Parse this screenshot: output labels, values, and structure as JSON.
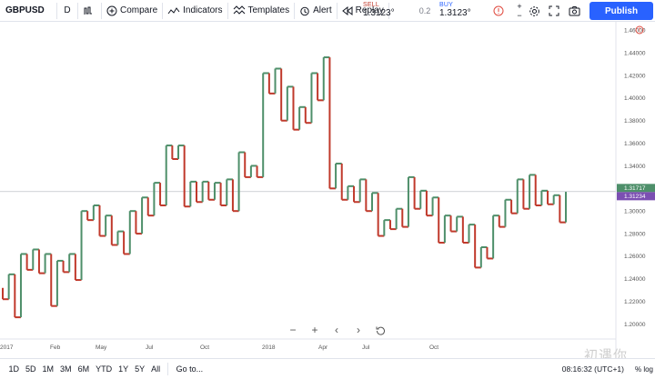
{
  "toolbar": {
    "symbol": "GBPUSD",
    "interval": "D",
    "compare_label": "Compare",
    "indicators_label": "Indicators",
    "templates_label": "Templates",
    "alert_label": "Alert",
    "replay_label": "Replay",
    "sell_label": "SELL",
    "sell_price": "1.3123°",
    "spread": "0.2",
    "buy_label": "BUY",
    "buy_price": "1.3123°",
    "publish_label": "Publish"
  },
  "bottom_bar": {
    "ranges": [
      "1D",
      "5D",
      "1M",
      "3M",
      "6M",
      "YTD",
      "1Y",
      "5Y",
      "All"
    ],
    "goto_label": "Go to...",
    "clock": "08:16:32 (UTC+1)",
    "flags": "% log"
  },
  "watermark": "初遇你",
  "colors": {
    "up": "#4e8f6a",
    "down": "#c0392b",
    "accent": "#2962ff",
    "last_price_badge": "#7b4fb2"
  },
  "chart_data": {
    "type": "kagi",
    "symbol": "GBPUSD",
    "interval": "D",
    "ylim": [
      1.19,
      1.465
    ],
    "yticks": [
      "1.46000",
      "1.44000",
      "1.42000",
      "1.40000",
      "1.38000",
      "1.36000",
      "1.34000",
      "1.32000",
      "1.30000",
      "1.28000",
      "1.26000",
      "1.24000",
      "1.22000",
      "1.20000"
    ],
    "price_labels": [
      "1.31717",
      "1.31234"
    ],
    "time_labels": [
      "2017",
      "Feb",
      "May",
      "Jul",
      "Oct",
      "2018",
      "Apr",
      "Jul",
      "Oct"
    ],
    "segments": [
      {
        "x": 0,
        "y0": 1.232,
        "y1": 1.222,
        "dir": "down"
      },
      {
        "x": 1,
        "y0": 1.222,
        "y1": 1.244,
        "dir": "up"
      },
      {
        "x": 2,
        "y0": 1.244,
        "y1": 1.206,
        "dir": "down"
      },
      {
        "x": 3,
        "y0": 1.206,
        "y1": 1.262,
        "dir": "up"
      },
      {
        "x": 4,
        "y0": 1.262,
        "y1": 1.248,
        "dir": "down"
      },
      {
        "x": 5,
        "y0": 1.248,
        "y1": 1.266,
        "dir": "up"
      },
      {
        "x": 6,
        "y0": 1.266,
        "y1": 1.245,
        "dir": "down"
      },
      {
        "x": 7,
        "y0": 1.245,
        "y1": 1.262,
        "dir": "up"
      },
      {
        "x": 8,
        "y0": 1.262,
        "y1": 1.216,
        "dir": "down"
      },
      {
        "x": 9,
        "y0": 1.216,
        "y1": 1.256,
        "dir": "up"
      },
      {
        "x": 10,
        "y0": 1.256,
        "y1": 1.246,
        "dir": "down"
      },
      {
        "x": 11,
        "y0": 1.246,
        "y1": 1.262,
        "dir": "up"
      },
      {
        "x": 12,
        "y0": 1.262,
        "y1": 1.239,
        "dir": "down"
      },
      {
        "x": 13,
        "y0": 1.239,
        "y1": 1.3,
        "dir": "up"
      },
      {
        "x": 14,
        "y0": 1.3,
        "y1": 1.292,
        "dir": "down"
      },
      {
        "x": 15,
        "y0": 1.292,
        "y1": 1.305,
        "dir": "up"
      },
      {
        "x": 16,
        "y0": 1.305,
        "y1": 1.278,
        "dir": "down"
      },
      {
        "x": 17,
        "y0": 1.278,
        "y1": 1.296,
        "dir": "up"
      },
      {
        "x": 18,
        "y0": 1.296,
        "y1": 1.27,
        "dir": "down"
      },
      {
        "x": 19,
        "y0": 1.27,
        "y1": 1.282,
        "dir": "up"
      },
      {
        "x": 20,
        "y0": 1.282,
        "y1": 1.262,
        "dir": "down"
      },
      {
        "x": 21,
        "y0": 1.262,
        "y1": 1.3,
        "dir": "up"
      },
      {
        "x": 22,
        "y0": 1.3,
        "y1": 1.28,
        "dir": "down"
      },
      {
        "x": 23,
        "y0": 1.28,
        "y1": 1.312,
        "dir": "up"
      },
      {
        "x": 24,
        "y0": 1.312,
        "y1": 1.296,
        "dir": "down"
      },
      {
        "x": 25,
        "y0": 1.296,
        "y1": 1.325,
        "dir": "up"
      },
      {
        "x": 26,
        "y0": 1.325,
        "y1": 1.305,
        "dir": "down"
      },
      {
        "x": 27,
        "y0": 1.305,
        "y1": 1.358,
        "dir": "up"
      },
      {
        "x": 28,
        "y0": 1.358,
        "y1": 1.346,
        "dir": "down"
      },
      {
        "x": 29,
        "y0": 1.346,
        "y1": 1.358,
        "dir": "up"
      },
      {
        "x": 30,
        "y0": 1.358,
        "y1": 1.304,
        "dir": "down"
      },
      {
        "x": 31,
        "y0": 1.304,
        "y1": 1.326,
        "dir": "up"
      },
      {
        "x": 32,
        "y0": 1.326,
        "y1": 1.308,
        "dir": "down"
      },
      {
        "x": 33,
        "y0": 1.308,
        "y1": 1.326,
        "dir": "up"
      },
      {
        "x": 34,
        "y0": 1.326,
        "y1": 1.31,
        "dir": "down"
      },
      {
        "x": 35,
        "y0": 1.31,
        "y1": 1.325,
        "dir": "up"
      },
      {
        "x": 36,
        "y0": 1.325,
        "y1": 1.305,
        "dir": "down"
      },
      {
        "x": 37,
        "y0": 1.305,
        "y1": 1.328,
        "dir": "up"
      },
      {
        "x": 38,
        "y0": 1.328,
        "y1": 1.3,
        "dir": "down"
      },
      {
        "x": 39,
        "y0": 1.3,
        "y1": 1.352,
        "dir": "up"
      },
      {
        "x": 40,
        "y0": 1.352,
        "y1": 1.33,
        "dir": "down"
      },
      {
        "x": 41,
        "y0": 1.33,
        "y1": 1.34,
        "dir": "up"
      },
      {
        "x": 42,
        "y0": 1.34,
        "y1": 1.33,
        "dir": "down"
      },
      {
        "x": 43,
        "y0": 1.33,
        "y1": 1.422,
        "dir": "up"
      },
      {
        "x": 44,
        "y0": 1.422,
        "y1": 1.404,
        "dir": "down"
      },
      {
        "x": 45,
        "y0": 1.404,
        "y1": 1.426,
        "dir": "up"
      },
      {
        "x": 46,
        "y0": 1.426,
        "y1": 1.38,
        "dir": "down"
      },
      {
        "x": 47,
        "y0": 1.38,
        "y1": 1.41,
        "dir": "up"
      },
      {
        "x": 48,
        "y0": 1.41,
        "y1": 1.372,
        "dir": "down"
      },
      {
        "x": 49,
        "y0": 1.372,
        "y1": 1.392,
        "dir": "up"
      },
      {
        "x": 50,
        "y0": 1.392,
        "y1": 1.378,
        "dir": "down"
      },
      {
        "x": 51,
        "y0": 1.378,
        "y1": 1.422,
        "dir": "up"
      },
      {
        "x": 52,
        "y0": 1.422,
        "y1": 1.398,
        "dir": "down"
      },
      {
        "x": 53,
        "y0": 1.398,
        "y1": 1.436,
        "dir": "up"
      },
      {
        "x": 54,
        "y0": 1.436,
        "y1": 1.32,
        "dir": "down"
      },
      {
        "x": 55,
        "y0": 1.32,
        "y1": 1.342,
        "dir": "up"
      },
      {
        "x": 56,
        "y0": 1.342,
        "y1": 1.31,
        "dir": "down"
      },
      {
        "x": 57,
        "y0": 1.31,
        "y1": 1.322,
        "dir": "up"
      },
      {
        "x": 58,
        "y0": 1.322,
        "y1": 1.308,
        "dir": "down"
      },
      {
        "x": 59,
        "y0": 1.308,
        "y1": 1.328,
        "dir": "up"
      },
      {
        "x": 60,
        "y0": 1.328,
        "y1": 1.3,
        "dir": "down"
      },
      {
        "x": 61,
        "y0": 1.3,
        "y1": 1.316,
        "dir": "up"
      },
      {
        "x": 62,
        "y0": 1.316,
        "y1": 1.278,
        "dir": "down"
      },
      {
        "x": 63,
        "y0": 1.278,
        "y1": 1.292,
        "dir": "up"
      },
      {
        "x": 64,
        "y0": 1.292,
        "y1": 1.284,
        "dir": "down"
      },
      {
        "x": 65,
        "y0": 1.284,
        "y1": 1.302,
        "dir": "up"
      },
      {
        "x": 66,
        "y0": 1.302,
        "y1": 1.286,
        "dir": "down"
      },
      {
        "x": 67,
        "y0": 1.286,
        "y1": 1.33,
        "dir": "up"
      },
      {
        "x": 68,
        "y0": 1.33,
        "y1": 1.302,
        "dir": "down"
      },
      {
        "x": 69,
        "y0": 1.302,
        "y1": 1.318,
        "dir": "up"
      },
      {
        "x": 70,
        "y0": 1.318,
        "y1": 1.296,
        "dir": "down"
      },
      {
        "x": 71,
        "y0": 1.296,
        "y1": 1.312,
        "dir": "up"
      },
      {
        "x": 72,
        "y0": 1.312,
        "y1": 1.272,
        "dir": "down"
      },
      {
        "x": 73,
        "y0": 1.272,
        "y1": 1.296,
        "dir": "up"
      },
      {
        "x": 74,
        "y0": 1.296,
        "y1": 1.282,
        "dir": "down"
      },
      {
        "x": 75,
        "y0": 1.282,
        "y1": 1.295,
        "dir": "up"
      },
      {
        "x": 76,
        "y0": 1.295,
        "y1": 1.272,
        "dir": "down"
      },
      {
        "x": 77,
        "y0": 1.272,
        "y1": 1.288,
        "dir": "up"
      },
      {
        "x": 78,
        "y0": 1.288,
        "y1": 1.25,
        "dir": "down"
      },
      {
        "x": 79,
        "y0": 1.25,
        "y1": 1.268,
        "dir": "up"
      },
      {
        "x": 80,
        "y0": 1.268,
        "y1": 1.258,
        "dir": "down"
      },
      {
        "x": 81,
        "y0": 1.258,
        "y1": 1.296,
        "dir": "up"
      },
      {
        "x": 82,
        "y0": 1.296,
        "y1": 1.286,
        "dir": "down"
      },
      {
        "x": 83,
        "y0": 1.286,
        "y1": 1.31,
        "dir": "up"
      },
      {
        "x": 84,
        "y0": 1.31,
        "y1": 1.298,
        "dir": "down"
      },
      {
        "x": 85,
        "y0": 1.298,
        "y1": 1.328,
        "dir": "up"
      },
      {
        "x": 86,
        "y0": 1.328,
        "y1": 1.302,
        "dir": "down"
      },
      {
        "x": 87,
        "y0": 1.302,
        "y1": 1.332,
        "dir": "up"
      },
      {
        "x": 88,
        "y0": 1.332,
        "y1": 1.305,
        "dir": "down"
      },
      {
        "x": 89,
        "y0": 1.305,
        "y1": 1.318,
        "dir": "up"
      },
      {
        "x": 90,
        "y0": 1.318,
        "y1": 1.306,
        "dir": "down"
      },
      {
        "x": 91,
        "y0": 1.306,
        "y1": 1.314,
        "dir": "up"
      },
      {
        "x": 92,
        "y0": 1.314,
        "y1": 1.29,
        "dir": "down"
      },
      {
        "x": 93,
        "y0": 1.29,
        "y1": 1.317,
        "dir": "up"
      }
    ]
  }
}
